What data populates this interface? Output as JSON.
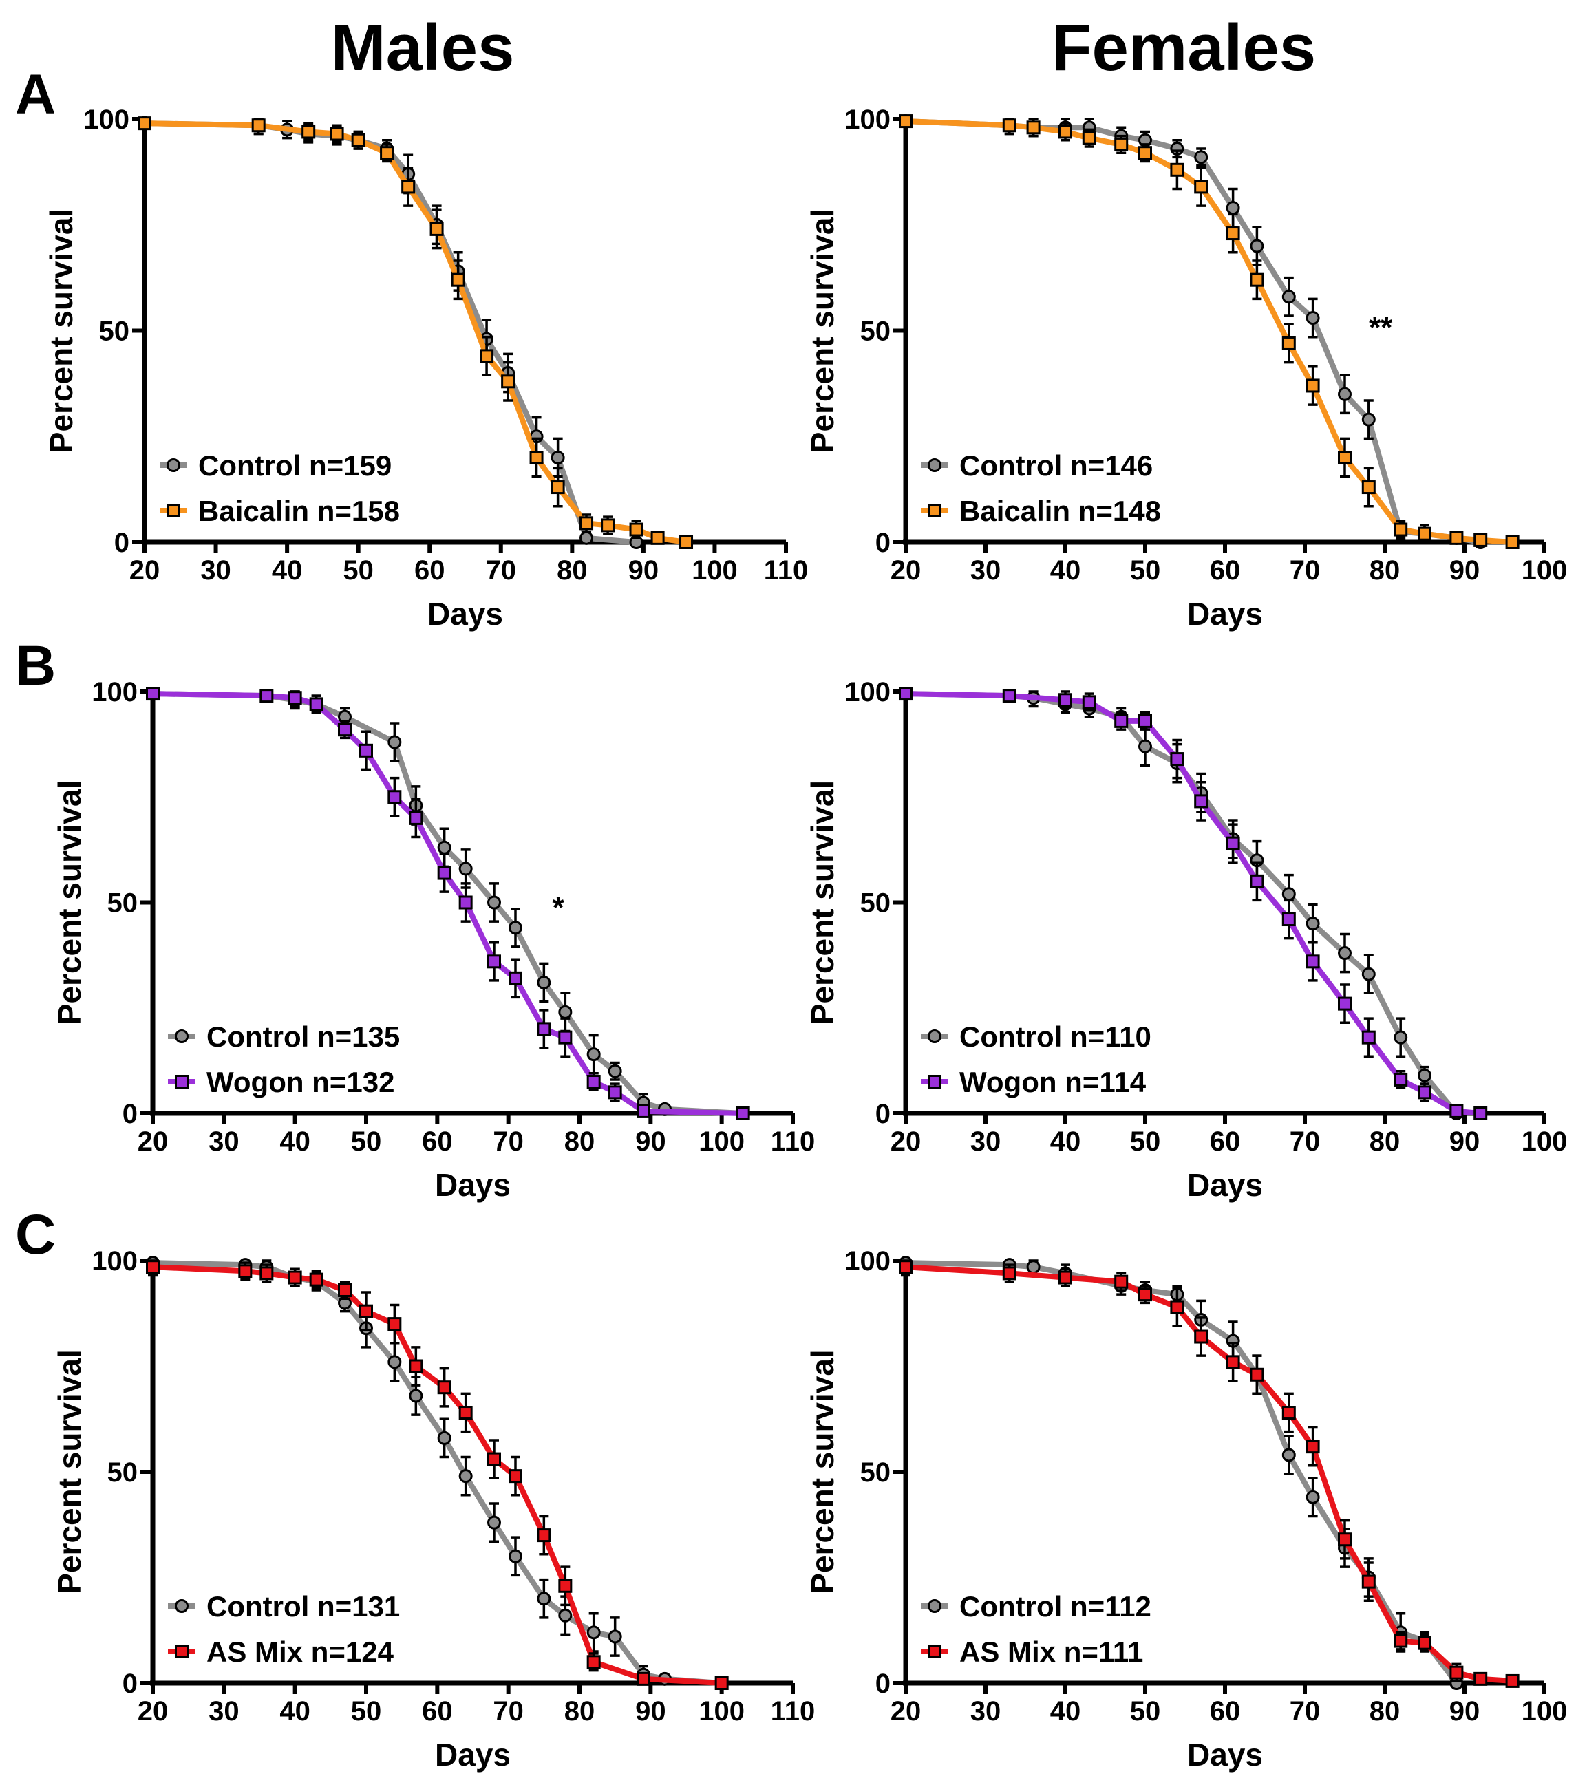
{
  "column_titles": [
    "Males",
    "Females"
  ],
  "panel_letters": [
    "A",
    "B",
    "C"
  ],
  "colors": {
    "control": "#8c8c8c",
    "baicalin": "#f7931e",
    "wogon": "#9b30d9",
    "as_mix": "#e8141b",
    "axis": "#000000"
  },
  "chart_data": [
    {
      "type": "line",
      "row": "A",
      "column": "Males",
      "xlabel": "Days",
      "ylabel": "Percent survival",
      "xlim": [
        20,
        110
      ],
      "ylim": [
        0,
        100
      ],
      "xticks": [
        20,
        30,
        40,
        50,
        60,
        70,
        80,
        90,
        100,
        110
      ],
      "yticks": [
        0,
        50,
        100
      ],
      "annotation": null,
      "series": [
        {
          "name": "Control n=159",
          "marker": "circle",
          "color": "#8c8c8c",
          "x": [
            20,
            36,
            40,
            43,
            47,
            50,
            54,
            57,
            61,
            64,
            68,
            71,
            75,
            78,
            82,
            89
          ],
          "y": [
            99,
            98.5,
            97.5,
            96.5,
            96,
            95,
            93,
            87,
            75,
            64,
            48,
            40,
            25,
            20,
            1,
            0
          ]
        },
        {
          "name": "Baicalin n=158",
          "marker": "square",
          "color": "#f7931e",
          "x": [
            20,
            36,
            43,
            47,
            50,
            54,
            57,
            61,
            64,
            68,
            71,
            75,
            78,
            82,
            85,
            89,
            92,
            96
          ],
          "y": [
            99,
            98.5,
            97,
            96.5,
            95,
            92,
            84,
            74,
            62,
            44,
            38,
            20,
            13,
            4.5,
            4,
            3,
            1,
            0
          ]
        }
      ]
    },
    {
      "type": "line",
      "row": "A",
      "column": "Females",
      "xlabel": "Days",
      "ylabel": "Percent survival",
      "xlim": [
        20,
        100
      ],
      "ylim": [
        0,
        100
      ],
      "xticks": [
        20,
        30,
        40,
        50,
        60,
        70,
        80,
        90,
        100
      ],
      "yticks": [
        0,
        50,
        100
      ],
      "annotation": {
        "text": "**",
        "x": 79.5,
        "y": 51
      },
      "series": [
        {
          "name": "Control n=146",
          "marker": "circle",
          "color": "#8c8c8c",
          "x": [
            20,
            33,
            36,
            40,
            43,
            47,
            50,
            54,
            57,
            61,
            64,
            68,
            71,
            75,
            78,
            82,
            85,
            89,
            92
          ],
          "y": [
            99.5,
            98.5,
            98,
            98,
            98,
            96,
            95,
            93,
            91,
            79,
            70,
            58,
            53,
            35,
            29,
            2.5,
            2,
            1,
            0
          ]
        },
        {
          "name": "Baicalin n=148",
          "marker": "square",
          "color": "#f7931e",
          "x": [
            20,
            33,
            36,
            40,
            43,
            47,
            50,
            54,
            57,
            61,
            64,
            68,
            71,
            75,
            78,
            82,
            85,
            89,
            92,
            96
          ],
          "y": [
            99.5,
            98.5,
            98,
            97,
            95.5,
            94,
            92,
            88,
            84,
            73,
            62,
            47,
            37,
            20,
            13,
            3,
            2,
            1,
            0.5,
            0
          ]
        }
      ]
    },
    {
      "type": "line",
      "row": "B",
      "column": "Males",
      "xlabel": "Days",
      "ylabel": "Percent survival",
      "xlim": [
        20,
        110
      ],
      "ylim": [
        0,
        100
      ],
      "xticks": [
        20,
        30,
        40,
        50,
        60,
        70,
        80,
        90,
        100,
        110
      ],
      "yticks": [
        0,
        50,
        100
      ],
      "annotation": {
        "text": "*",
        "x": 77,
        "y": 49
      },
      "series": [
        {
          "name": "Control n=135",
          "marker": "circle",
          "color": "#8c8c8c",
          "x": [
            20,
            36,
            40,
            43,
            47,
            54,
            57,
            61,
            64,
            68,
            71,
            75,
            78,
            82,
            85,
            89,
            92,
            103
          ],
          "y": [
            99.5,
            99,
            98,
            97,
            94,
            88,
            73,
            63,
            58,
            50,
            44,
            31,
            24,
            14,
            10,
            2.5,
            1,
            0
          ]
        },
        {
          "name": "Wogon n=132",
          "marker": "square",
          "color": "#9b30d9",
          "x": [
            20,
            36,
            40,
            43,
            47,
            50,
            54,
            57,
            61,
            64,
            68,
            71,
            75,
            78,
            82,
            85,
            89,
            103
          ],
          "y": [
            99.5,
            99,
            98.5,
            97,
            91,
            86,
            75,
            70,
            57,
            50,
            36,
            32,
            20,
            18,
            7.5,
            5,
            0.5,
            0
          ]
        }
      ]
    },
    {
      "type": "line",
      "row": "B",
      "column": "Females",
      "xlabel": "Days",
      "ylabel": "Percent survival",
      "xlim": [
        20,
        100
      ],
      "ylim": [
        0,
        100
      ],
      "xticks": [
        20,
        30,
        40,
        50,
        60,
        70,
        80,
        90,
        100
      ],
      "yticks": [
        0,
        50,
        100
      ],
      "annotation": null,
      "series": [
        {
          "name": "Control n=110",
          "marker": "circle",
          "color": "#8c8c8c",
          "x": [
            20,
            33,
            36,
            40,
            43,
            47,
            50,
            54,
            57,
            61,
            64,
            68,
            71,
            75,
            78,
            82,
            85,
            89
          ],
          "y": [
            99.5,
            99,
            98.5,
            97,
            96,
            94,
            87,
            83,
            76,
            65,
            60,
            52,
            45,
            38,
            33,
            18,
            9,
            0
          ]
        },
        {
          "name": "Wogon n=114",
          "marker": "square",
          "color": "#9b30d9",
          "x": [
            20,
            33,
            40,
            43,
            47,
            50,
            54,
            57,
            61,
            64,
            68,
            71,
            75,
            78,
            82,
            85,
            89,
            92
          ],
          "y": [
            99.5,
            99,
            98,
            97.5,
            93,
            93,
            84,
            74,
            64,
            55,
            46,
            36,
            26,
            18,
            8,
            5,
            0.5,
            0
          ]
        }
      ]
    },
    {
      "type": "line",
      "row": "C",
      "column": "Males",
      "xlabel": "Days",
      "ylabel": "Percent survival",
      "xlim": [
        20,
        110
      ],
      "ylim": [
        0,
        100
      ],
      "xticks": [
        20,
        30,
        40,
        50,
        60,
        70,
        80,
        90,
        100,
        110
      ],
      "yticks": [
        0,
        50,
        100
      ],
      "annotation": null,
      "series": [
        {
          "name": "Control n=131",
          "marker": "circle",
          "color": "#8c8c8c",
          "x": [
            20,
            33,
            36,
            40,
            43,
            47,
            50,
            54,
            57,
            61,
            64,
            68,
            71,
            75,
            78,
            82,
            85,
            89,
            92,
            100
          ],
          "y": [
            99.5,
            99,
            98.5,
            96,
            95,
            90,
            84,
            76,
            68,
            58,
            49,
            38,
            30,
            20,
            16,
            12,
            11,
            2,
            1,
            0
          ]
        },
        {
          "name": "AS Mix n=124",
          "marker": "square",
          "color": "#e8141b",
          "x": [
            20,
            33,
            36,
            40,
            43,
            47,
            50,
            54,
            57,
            61,
            64,
            68,
            71,
            75,
            78,
            82,
            89,
            100
          ],
          "y": [
            98.5,
            97.5,
            97,
            96,
            95.5,
            93,
            88,
            85,
            75,
            70,
            64,
            53,
            49,
            35,
            23,
            5,
            1,
            0
          ]
        }
      ]
    },
    {
      "type": "line",
      "row": "C",
      "column": "Females",
      "xlabel": "Days",
      "ylabel": "Percent survival",
      "xlim": [
        20,
        100
      ],
      "ylim": [
        0,
        100
      ],
      "xticks": [
        20,
        30,
        40,
        50,
        60,
        70,
        80,
        90,
        100
      ],
      "yticks": [
        0,
        50,
        100
      ],
      "annotation": null,
      "series": [
        {
          "name": "Control n=112",
          "marker": "circle",
          "color": "#8c8c8c",
          "x": [
            20,
            33,
            36,
            40,
            47,
            50,
            54,
            57,
            61,
            64,
            68,
            71,
            75,
            78,
            82,
            85,
            89
          ],
          "y": [
            99.5,
            99,
            98.5,
            97,
            94,
            93,
            92,
            86,
            81,
            73,
            54,
            44,
            32,
            25,
            12,
            10,
            0
          ]
        },
        {
          "name": "AS Mix n=111",
          "marker": "square",
          "color": "#e8141b",
          "x": [
            20,
            33,
            40,
            47,
            50,
            54,
            57,
            61,
            64,
            68,
            71,
            75,
            78,
            82,
            85,
            89,
            92,
            96
          ],
          "y": [
            98.5,
            97,
            96,
            95,
            92,
            89,
            82,
            76,
            73,
            64,
            56,
            34,
            24,
            10,
            9.5,
            2.5,
            1,
            0.5
          ]
        }
      ]
    }
  ]
}
